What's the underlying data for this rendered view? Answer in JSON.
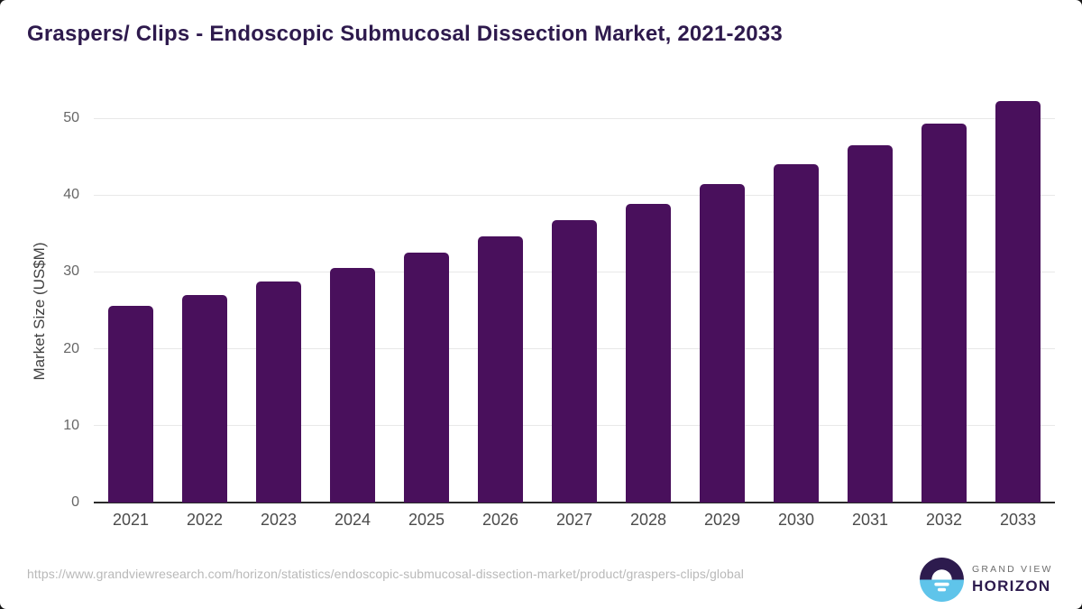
{
  "title": "Graspers/ Clips - Endoscopic Submucosal Dissection Market, 2021-2033",
  "chart_data": {
    "type": "bar",
    "categories": [
      "2021",
      "2022",
      "2023",
      "2024",
      "2025",
      "2026",
      "2027",
      "2028",
      "2029",
      "2030",
      "2031",
      "2032",
      "2033"
    ],
    "values": [
      25.6,
      27.0,
      28.7,
      30.5,
      32.5,
      34.6,
      36.7,
      38.9,
      41.4,
      44.0,
      46.5,
      49.3,
      52.2
    ],
    "title": "Graspers/ Clips - Endoscopic Submucosal Dissection Market, 2021-2033",
    "xlabel": "",
    "ylabel": "Market Size (US$M)",
    "ylim": [
      0,
      55
    ],
    "yticks": [
      0,
      10,
      20,
      30,
      40,
      50
    ],
    "grid": true,
    "legend": "none",
    "bar_color": "#49105C"
  },
  "colors": {
    "brand_purple": "#2D1B4E",
    "bar_purple": "#49105C",
    "logo_blue": "#5FC4EA",
    "gridline": "#E8E8E8",
    "axis_line": "#2B2B2B",
    "tick_text": "#666666",
    "url_text": "#B9B9B9"
  },
  "footer": {
    "source_url": "https://www.grandviewresearch.com/horizon/statistics/endoscopic-submucosal-dissection-market/product/graspers-clips/global",
    "logo": {
      "top": "GRAND VIEW",
      "bottom": "HORIZON"
    }
  }
}
